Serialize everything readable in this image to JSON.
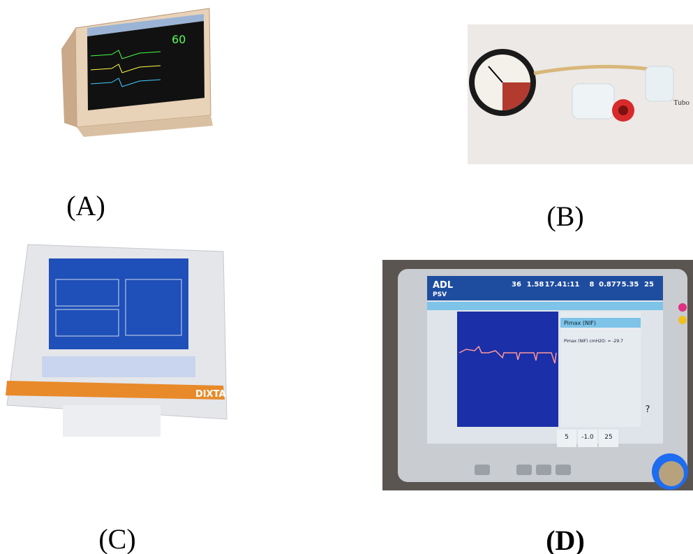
{
  "panels": [
    {
      "label": "(A)",
      "texts": [
        "60"
      ]
    },
    {
      "label": "(B)",
      "texts": [
        "Tubo"
      ]
    },
    {
      "label": "(C)",
      "texts": [
        "DIXTAL"
      ]
    },
    {
      "label": "(D)",
      "texts": [
        "ADL",
        "PSV",
        "36",
        "1.58",
        "17.4",
        "1:11",
        "8",
        "0.877",
        "5.35",
        "25",
        "Pimax (NIF)",
        "Pimax (NIF) cmH2O: = -29.7",
        "5",
        "-1.0",
        "25",
        "?"
      ]
    }
  ]
}
